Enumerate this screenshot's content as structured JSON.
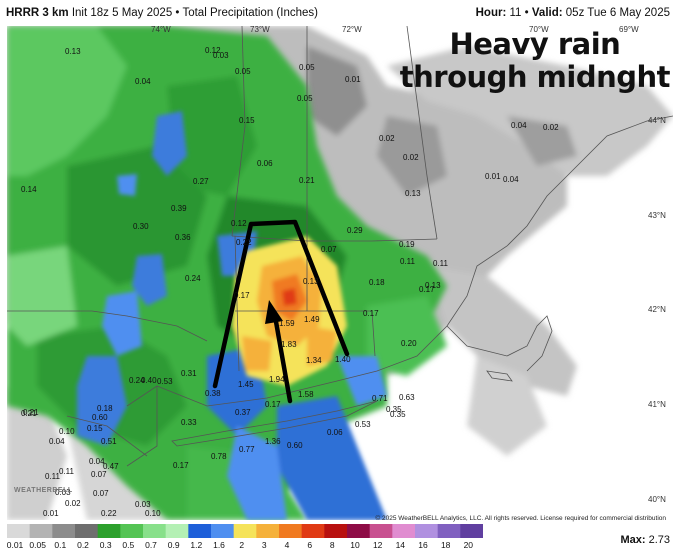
{
  "header": {
    "model": "HRRR 3 km",
    "init": "Init 18z 5 May 2025",
    "separator": "•",
    "product": "Total Precipitation (Inches)",
    "hour_label": "Hour:",
    "hour_value": "11",
    "valid_label": "Valid:",
    "valid_value": "05z Tue 6 May 2025"
  },
  "overlay_title": {
    "line1": "Heavy rain",
    "line2": "through midnght"
  },
  "longitude_labels": [
    "74°W",
    "73°W",
    "72°W",
    "70°W",
    "69°W"
  ],
  "latitude_labels": [
    "44°N",
    "43°N",
    "42°N",
    "41°N",
    "40°N"
  ],
  "precip_values": [
    "0.13",
    "0.03",
    "0.05",
    "0.05",
    "0.01",
    "0.04",
    "0.05",
    "0.15",
    "0.14",
    "0.27",
    "0.39",
    "0.30",
    "0.36",
    "0.06",
    "0.21",
    "0.02",
    "0.02",
    "0.04",
    "0.02",
    "0.04",
    "0.13",
    "0.01",
    "0.12",
    "0.22",
    "0.07",
    "0.29",
    "0.19",
    "0.11",
    "0.11",
    "0.13",
    "0.18",
    "0.17",
    "0.17",
    "0.24",
    "0.17",
    "0.13",
    "1.59",
    "1.49",
    "1.83",
    "1.34",
    "1.40",
    "1.45",
    "1.94",
    "0.24",
    "0.40",
    "0.53",
    "0.31",
    "0.38",
    "1.58",
    "0.71",
    "0.63",
    "0.20",
    "0.10",
    "0.04",
    "0.15",
    "0.60",
    "0.51",
    "0.33",
    "0.37",
    "0.17",
    "0.21",
    "0.18",
    "0.35",
    "0.06",
    "0.53",
    "0.35",
    "0.78",
    "0.77",
    "1.36",
    "0.60",
    "0.47",
    "0.17",
    "0.11",
    "0.04",
    "0.07",
    "0.03",
    "0.07",
    "0.03",
    "0.22",
    "0.10",
    "0.01",
    "0.02",
    "0.21",
    "0.12",
    "0.11"
  ],
  "logo_text": "WEATHERBELL",
  "copyright": "© 2025 WeatherBELL Analytics, LLC. All rights reserved. License required for commercial distribution",
  "legend": {
    "labels": [
      "0.01",
      "0.05",
      "0.1",
      "0.2",
      "0.3",
      "0.5",
      "0.7",
      "0.9",
      "1.2",
      "1.6",
      "2",
      "3",
      "4",
      "6",
      "8",
      "10",
      "12",
      "14",
      "16",
      "18",
      "20"
    ],
    "colors": [
      "#d9d9d9",
      "#b3b3b3",
      "#8c8c8c",
      "#6e6e6e",
      "#2ca02c",
      "#54c454",
      "#88e08a",
      "#b4f0b4",
      "#1e5fd9",
      "#4f8ff0",
      "#f5e35a",
      "#f5b13a",
      "#f07a20",
      "#e03a14",
      "#b8100f",
      "#8e0c46",
      "#c85090",
      "#e08cd0",
      "#b090e0",
      "#8060c0",
      "#603fa0"
    ]
  },
  "max": {
    "label": "Max:",
    "value": "2.73"
  }
}
